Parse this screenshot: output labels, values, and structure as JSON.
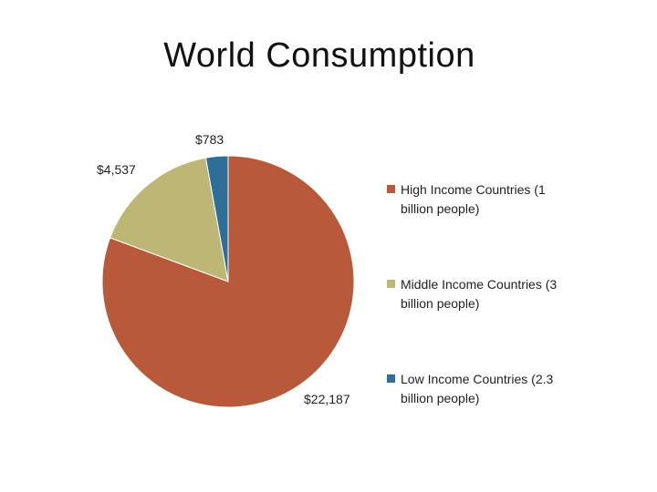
{
  "slide": {
    "title": "World Consumption"
  },
  "chart_data": {
    "type": "pie",
    "title": "World Consumption",
    "categories": [
      "High Income Countries (1 billion people)",
      "Middle Income Countries (3 billion people)",
      "Low Income Countries (2.3 billion people)"
    ],
    "values": [
      22187,
      4537,
      783
    ],
    "data_labels": [
      "$22,187",
      "$4,537",
      "$783"
    ],
    "colors": [
      "#B85A3A",
      "#BDB674",
      "#2E6E98"
    ],
    "legend": {
      "placement": "right",
      "entries": [
        "High Income Countries (1 billion people)",
        "Middle Income Countries (3 billion people)",
        "Low Income Countries (2.3 billion people)"
      ]
    }
  }
}
